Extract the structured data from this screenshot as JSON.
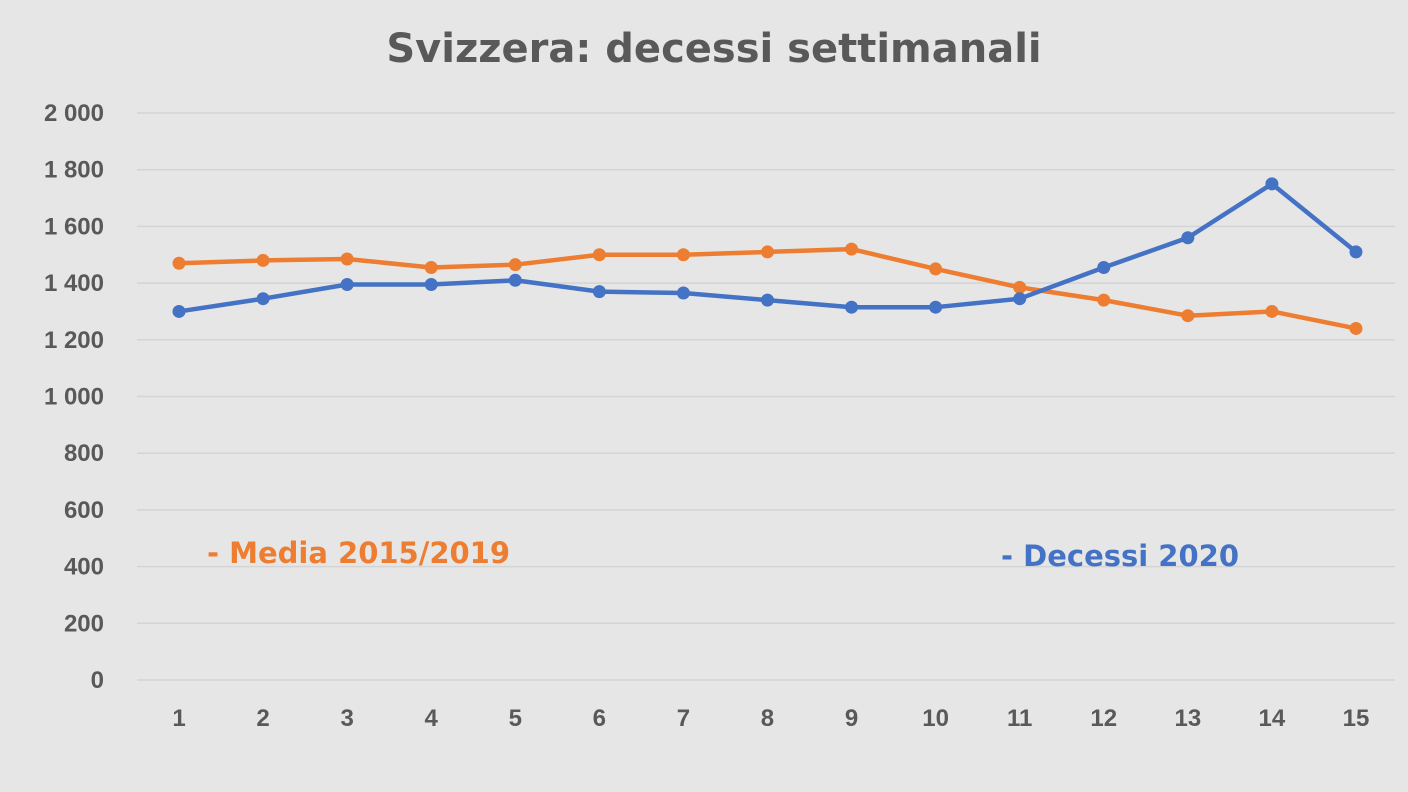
{
  "chart_data": {
    "type": "line",
    "title": "Svizzera: decessi settimanali",
    "xlabel": "",
    "ylabel": "",
    "categories": [
      "1",
      "2",
      "3",
      "4",
      "5",
      "6",
      "7",
      "8",
      "9",
      "10",
      "11",
      "12",
      "13",
      "14",
      "15"
    ],
    "yticks": [
      "0",
      "200",
      "400",
      "600",
      "800",
      "1 000",
      "1 200",
      "1 400",
      "1 600",
      "1 800",
      "2 000"
    ],
    "ylim": [
      0,
      2000
    ],
    "grid": true,
    "legend": "inline",
    "series": [
      {
        "name": "Media 2015/2019",
        "legend_label": "- Media 2015/2019",
        "color": "#ed7d31",
        "values": [
          1470,
          1480,
          1485,
          1455,
          1465,
          1500,
          1500,
          1510,
          1520,
          1450,
          1385,
          1340,
          1285,
          1300,
          1240
        ]
      },
      {
        "name": "Decessi 2020",
        "legend_label": "- Decessi 2020",
        "color": "#4472c4",
        "values": [
          1300,
          1345,
          1395,
          1395,
          1410,
          1370,
          1365,
          1340,
          1315,
          1315,
          1345,
          1455,
          1560,
          1750,
          1510
        ]
      }
    ]
  }
}
